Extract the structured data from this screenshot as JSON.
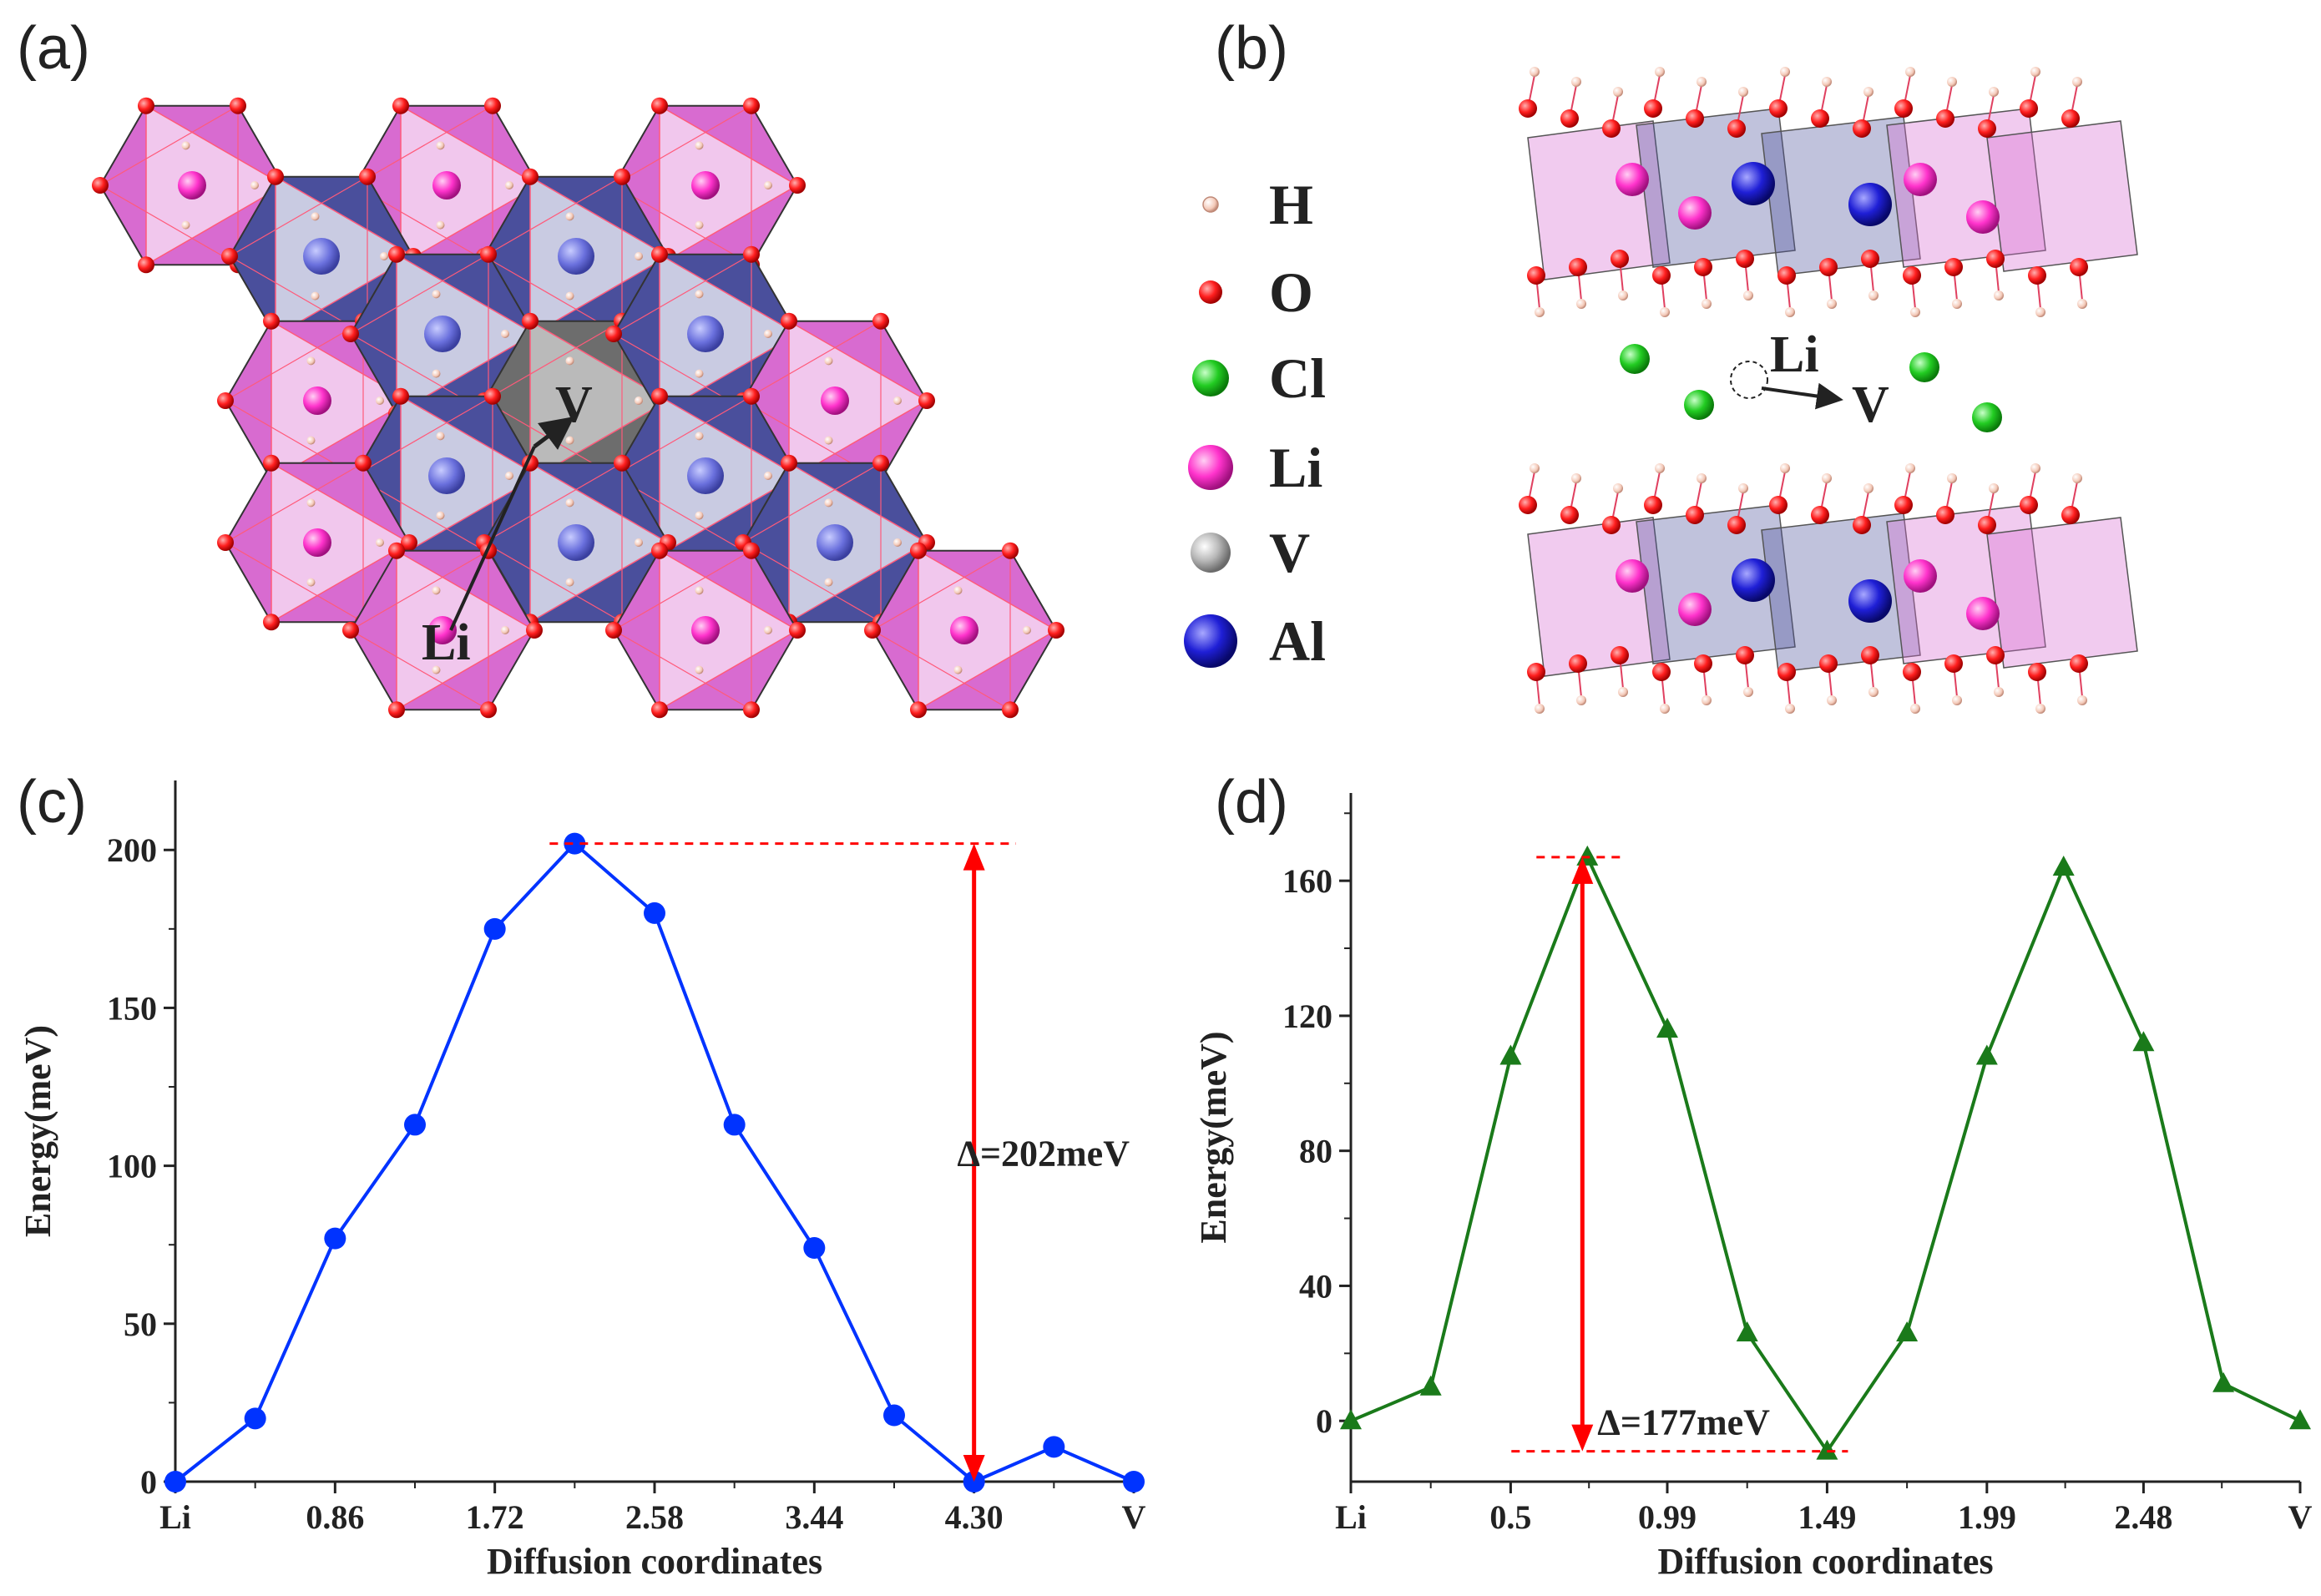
{
  "panel_labels": [
    "(a)",
    "(b)",
    "(c)",
    "(d)"
  ],
  "panel_a": {
    "start_label": "Li",
    "end_label": "V"
  },
  "panel_b": {
    "start_label": "Li",
    "end_label": "V",
    "legend": [
      {
        "label": "H",
        "color": "#f4c9b8"
      },
      {
        "label": "O",
        "color": "#ff1f1f"
      },
      {
        "label": "Cl",
        "color": "#22cc22"
      },
      {
        "label": "Li",
        "color": "#ff33cc"
      },
      {
        "label": "V",
        "color": "#b8b8b8"
      },
      {
        "label": "Al",
        "color": "#1f1fd6"
      }
    ]
  },
  "colors": {
    "series_c": "#0033ff",
    "series_d": "#1a7a1a",
    "annotation": "#ff0000",
    "li_polyhedron": "#d86bd0",
    "al_polyhedron": "#4a4f9c"
  },
  "chart_data": [
    {
      "panel": "(c)",
      "type": "line",
      "marker": "circle",
      "xlabel": "Diffusion coordinates",
      "ylabel": "Energy(meV)",
      "xlim": [
        0,
        5.16
      ],
      "ylim": [
        0,
        222
      ],
      "yticks": [
        0,
        50,
        100,
        150,
        200
      ],
      "xticks": [
        {
          "value": 0,
          "label": "Li"
        },
        {
          "value": 0.86,
          "label": "0.86"
        },
        {
          "value": 1.72,
          "label": "1.72"
        },
        {
          "value": 2.58,
          "label": "2.58"
        },
        {
          "value": 3.44,
          "label": "3.44"
        },
        {
          "value": 4.3,
          "label": "4.30"
        },
        {
          "value": 5.16,
          "label": "V"
        }
      ],
      "x": [
        0,
        0.43,
        0.86,
        1.29,
        1.72,
        2.15,
        2.58,
        3.01,
        3.44,
        3.87,
        4.3,
        4.73,
        5.16
      ],
      "y": [
        0,
        20,
        77,
        113,
        175,
        202,
        180,
        113,
        74,
        21,
        0,
        11,
        0
      ],
      "annotation": "Δ=202meV",
      "annotation_range": [
        0,
        202
      ]
    },
    {
      "panel": "(d)",
      "type": "line",
      "marker": "triangle",
      "xlabel": "Diffusion coordinates",
      "ylabel": "Energy(meV)",
      "xlim": [
        0,
        2.97
      ],
      "ylim": [
        -18,
        186
      ],
      "yticks": [
        0,
        40,
        80,
        120,
        160
      ],
      "xticks": [
        {
          "value": 0,
          "label": "Li"
        },
        {
          "value": 0.5,
          "label": "0.5"
        },
        {
          "value": 0.99,
          "label": "0.99"
        },
        {
          "value": 1.49,
          "label": "1.49"
        },
        {
          "value": 1.99,
          "label": "1.99"
        },
        {
          "value": 2.48,
          "label": "2.48"
        },
        {
          "value": 2.97,
          "label": "V"
        }
      ],
      "x": [
        0,
        0.25,
        0.5,
        0.74,
        0.99,
        1.24,
        1.49,
        1.74,
        1.99,
        2.23,
        2.48,
        2.73,
        2.97
      ],
      "y": [
        0,
        10,
        108,
        167,
        116,
        26,
        -9,
        26,
        108,
        164,
        112,
        11,
        0
      ],
      "annotation": "Δ=177meV",
      "annotation_range": [
        -9,
        167
      ]
    }
  ]
}
